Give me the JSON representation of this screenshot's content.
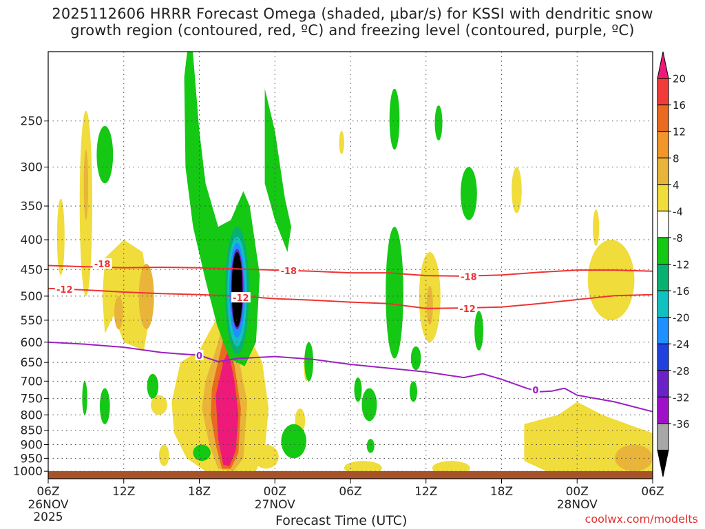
{
  "chart_data": {
    "type": "time-height",
    "title_line1": "2025112606 HRRR Forecast Omega (shaded, μbar/s) for KSSI with dendritic snow",
    "title_line2": "growth region (contoured, red, ºC) and freezing level (contoured, purple, ºC)",
    "xlabel": "Forecast Time (UTC)",
    "credit": "coolwx.com/modelts",
    "x_range_hours": [
      0,
      48
    ],
    "y_axis": {
      "type": "pressure (hPa)",
      "range": [
        1030,
        190
      ],
      "ticks": [
        250,
        300,
        350,
        400,
        450,
        500,
        550,
        600,
        650,
        700,
        750,
        800,
        850,
        900,
        950,
        1000
      ]
    },
    "x_ticks": [
      {
        "hour": 0,
        "label": "06Z",
        "date": "26NOV",
        "year": "2025"
      },
      {
        "hour": 6,
        "label": "12Z"
      },
      {
        "hour": 12,
        "label": "18Z"
      },
      {
        "hour": 18,
        "label": "00Z",
        "date": "27NOV"
      },
      {
        "hour": 24,
        "label": "06Z"
      },
      {
        "hour": 30,
        "label": "12Z"
      },
      {
        "hour": 36,
        "label": "18Z"
      },
      {
        "hour": 42,
        "label": "00Z",
        "date": "28NOV"
      },
      {
        "hour": 48,
        "label": "06Z"
      }
    ],
    "colorbar": {
      "labels": [
        "20",
        "16",
        "12",
        "8",
        "4",
        "-4",
        "-8",
        "-12",
        "-16",
        "-20",
        "-24",
        "-28",
        "-32",
        "-36"
      ],
      "colors": [
        "#ee1a7a",
        "#f23a3a",
        "#ea6a20",
        "#f2962a",
        "#e8b43a",
        "#f0dc3a",
        "#ffffff",
        "#14c814",
        "#0ab070",
        "#11c0c0",
        "#1e90ff",
        "#2040e0",
        "#6a22c8",
        "#a010c8",
        "#a8a8a8",
        "#000000"
      ]
    },
    "series": [
      {
        "name": "-18",
        "color": "#ee3333",
        "points": [
          [
            0,
            443
          ],
          [
            3,
            445
          ],
          [
            6,
            447
          ],
          [
            9,
            446
          ],
          [
            12,
            447
          ],
          [
            15,
            449
          ],
          [
            18,
            451
          ],
          [
            21,
            453
          ],
          [
            24,
            456
          ],
          [
            27,
            456
          ],
          [
            30,
            461
          ],
          [
            33,
            462
          ],
          [
            36,
            460
          ],
          [
            39,
            455
          ],
          [
            42,
            451
          ],
          [
            45,
            451
          ],
          [
            48,
            453
          ]
        ]
      },
      {
        "name": "-12",
        "color": "#ee3333",
        "points": [
          [
            0,
            485
          ],
          [
            3,
            488
          ],
          [
            6,
            492
          ],
          [
            9,
            495
          ],
          [
            12,
            497
          ],
          [
            15,
            500
          ],
          [
            18,
            505
          ],
          [
            21,
            508
          ],
          [
            24,
            512
          ],
          [
            27,
            515
          ],
          [
            30,
            525
          ],
          [
            33,
            524
          ],
          [
            36,
            522
          ],
          [
            39,
            515
          ],
          [
            42,
            507
          ],
          [
            45,
            499
          ],
          [
            48,
            497
          ]
        ]
      },
      {
        "name": "0",
        "color": "#9b1fc4",
        "points": [
          [
            0,
            600
          ],
          [
            3,
            605
          ],
          [
            6,
            612
          ],
          [
            9,
            625
          ],
          [
            12,
            632
          ],
          [
            13.5,
            648
          ],
          [
            15,
            640
          ],
          [
            18,
            635
          ],
          [
            21,
            642
          ],
          [
            24,
            655
          ],
          [
            27,
            665
          ],
          [
            30,
            675
          ],
          [
            33,
            690
          ],
          [
            34.5,
            680
          ],
          [
            36,
            695
          ],
          [
            38,
            720
          ],
          [
            39,
            730
          ],
          [
            40,
            728
          ],
          [
            41,
            720
          ],
          [
            42,
            740
          ],
          [
            45,
            760
          ],
          [
            48,
            790
          ]
        ]
      }
    ],
    "contour_labels": [
      {
        "text": "-18",
        "x": 4.3,
        "p": 440
      },
      {
        "text": "-12",
        "x": 1.3,
        "p": 487
      },
      {
        "text": "-18",
        "x": 19.1,
        "p": 452
      },
      {
        "text": "-12",
        "x": 15.3,
        "p": 503
      },
      {
        "text": "-18",
        "x": 33.4,
        "p": 463
      },
      {
        "text": "-12",
        "x": 33.3,
        "p": 525
      },
      {
        "text": "0",
        "x": 12.0,
        "p": 632
      },
      {
        "text": "0",
        "x": 38.7,
        "p": 725
      }
    ],
    "omega_regions": [
      {
        "value": "yellow(4-8)",
        "x": 14.0,
        "p": 800,
        "note": "low-level ascent region"
      },
      {
        "value": "pink(>20)",
        "x": 14.0,
        "p": 800,
        "note": "strongest low-level core"
      },
      {
        "value": "black(<-36)",
        "x": 15.0,
        "p": 470,
        "note": "strongest mid-level descent"
      }
    ]
  }
}
